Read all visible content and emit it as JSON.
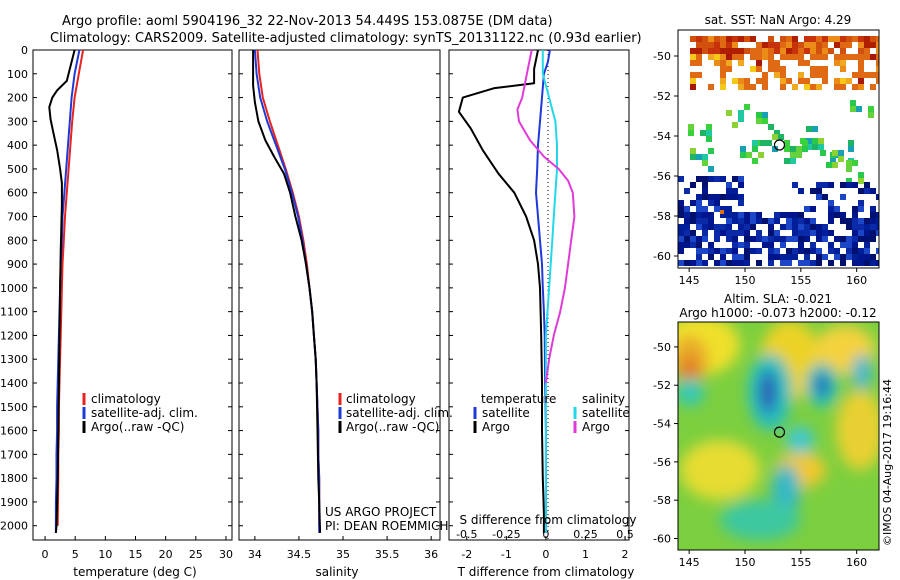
{
  "header": {
    "line1": "Argo profile: aoml 5904196_32 22-Nov-2013 54.449S 153.0875E (DM data)",
    "line2": "Climatology: CARS2009. Satellite-adjusted climatology: synTS_20131122.nc (0.93d earlier)"
  },
  "colors": {
    "climatology": "#e8221e",
    "satellite": "#1f39d8",
    "argo": "#000000",
    "satellite_salinity": "#22d8e8",
    "argo_salinity": "#e03ad8"
  },
  "chart_data": [
    {
      "type": "line",
      "id": "temperature",
      "xlabel": "temperature (deg C)",
      "ylabel": "",
      "xlim": [
        -2,
        31
      ],
      "ylim": [
        2060,
        0
      ],
      "xticks": [
        "0",
        "5",
        "10",
        "15",
        "20",
        "25",
        "30"
      ],
      "yticks": [
        "0",
        "100",
        "200",
        "300",
        "400",
        "500",
        "600",
        "700",
        "800",
        "900",
        "1000",
        "1100",
        "1200",
        "1300",
        "1400",
        "1500",
        "1600",
        "1700",
        "1800",
        "1900",
        "2000"
      ],
      "legend": [
        "climatology",
        "satellite-adj. clim.",
        "Argo(..raw -QC)"
      ],
      "series": [
        {
          "name": "climatology",
          "color": "#e8221e",
          "x": [
            6.3,
            5.6,
            4.9,
            4.5,
            4.2,
            3.9,
            3.6,
            3.3,
            3.1,
            2.9,
            2.8,
            2.7,
            2.6,
            2.5,
            2.4,
            2.3,
            2.3,
            2.2,
            2.2,
            2.1
          ],
          "y": [
            0,
            100,
            200,
            300,
            400,
            500,
            600,
            700,
            800,
            900,
            1000,
            1100,
            1200,
            1300,
            1400,
            1500,
            1600,
            1700,
            1800,
            2000
          ]
        },
        {
          "name": "satellite-adj. clim.",
          "color": "#1f39d8",
          "x": [
            5.7,
            4.9,
            4.4,
            4.1,
            3.8,
            3.5,
            3.2,
            2.9,
            2.8,
            2.6,
            2.5,
            2.4,
            2.3,
            2.2,
            2.1,
            2.0,
            2.0,
            1.9,
            1.9,
            1.8,
            1.8
          ],
          "y": [
            0,
            100,
            200,
            300,
            400,
            500,
            600,
            700,
            800,
            900,
            1000,
            1100,
            1200,
            1300,
            1400,
            1500,
            1600,
            1700,
            1800,
            1900,
            2030
          ]
        },
        {
          "name": "Argo(..raw -QC)",
          "color": "#000000",
          "x": [
            4.9,
            4.3,
            3.6,
            2.0,
            1.2,
            0.7,
            0.9,
            1.4,
            2.0,
            2.5,
            2.8,
            2.8,
            2.7,
            2.6,
            2.5,
            2.4,
            2.3,
            2.2,
            2.1,
            2.0,
            1.9,
            1.8
          ],
          "y": [
            0,
            60,
            130,
            170,
            200,
            240,
            290,
            350,
            420,
            500,
            560,
            650,
            750,
            850,
            1000,
            1200,
            1400,
            1600,
            1800,
            1900,
            2000,
            2030
          ]
        }
      ]
    },
    {
      "type": "line",
      "id": "salinity",
      "xlabel": "salinity",
      "ylabel": "",
      "xlim": [
        33.82,
        36.1
      ],
      "ylim": [
        2060,
        0
      ],
      "xticks": [
        "34",
        "34.5",
        "35",
        "35.5",
        "36"
      ],
      "legend": [
        "climatology",
        "satellite-adj. clim.",
        "Argo(..raw -QC)"
      ],
      "annotations": [
        "US ARGO PROJECT",
        "PI: DEAN ROEMMICH"
      ],
      "series": [
        {
          "name": "climatology",
          "color": "#e8221e",
          "x": [
            34.03,
            34.05,
            34.09,
            34.17,
            34.26,
            34.35,
            34.43,
            34.5,
            34.55,
            34.59,
            34.62,
            34.65,
            34.67,
            34.69,
            34.7,
            34.71,
            34.72,
            34.72,
            34.73,
            34.73
          ],
          "y": [
            0,
            100,
            200,
            300,
            400,
            500,
            600,
            700,
            800,
            900,
            1000,
            1100,
            1200,
            1300,
            1400,
            1500,
            1600,
            1700,
            1800,
            2000
          ]
        },
        {
          "name": "satellite-adj. clim.",
          "color": "#1f39d8",
          "x": [
            34.0,
            34.02,
            34.06,
            34.14,
            34.24,
            34.34,
            34.42,
            34.49,
            34.54,
            34.58,
            34.62,
            34.65,
            34.67,
            34.69,
            34.7,
            34.71,
            34.72,
            34.72,
            34.73,
            34.73
          ],
          "y": [
            0,
            100,
            200,
            300,
            400,
            500,
            600,
            700,
            800,
            900,
            1000,
            1100,
            1200,
            1300,
            1400,
            1500,
            1600,
            1700,
            1800,
            2030
          ]
        },
        {
          "name": "Argo(..raw -QC)",
          "color": "#000000",
          "x": [
            33.98,
            33.98,
            34.0,
            34.04,
            34.12,
            34.22,
            34.33,
            34.4,
            34.46,
            34.53,
            34.58,
            34.62,
            34.65,
            34.67,
            34.69,
            34.7,
            34.71,
            34.72,
            34.73,
            34.74
          ],
          "y": [
            0,
            150,
            220,
            300,
            380,
            450,
            520,
            600,
            700,
            800,
            900,
            1000,
            1100,
            1200,
            1300,
            1400,
            1600,
            1800,
            1900,
            2030
          ]
        }
      ]
    },
    {
      "type": "line",
      "id": "difference",
      "xlabel": "T difference from climatology",
      "xlabel_top": "S difference from climatology",
      "xlim": [
        -2.45,
        2.1
      ],
      "ylim": [
        2060,
        0
      ],
      "xticks_T": [
        "-2",
        "-1",
        "0",
        "1",
        "2"
      ],
      "xticks_S": [
        "-0.5",
        "-0.25",
        "0",
        "0.25",
        "0.5"
      ],
      "legend": {
        "temperature": {
          "title": "temperature",
          "items": [
            "satellite",
            "Argo"
          ]
        },
        "salinity": {
          "title": "salinity",
          "items": [
            "satellite",
            "Argo"
          ]
        }
      },
      "series": [
        {
          "name": "temperature satellite",
          "color": "#1f39d8",
          "x": [
            0.1,
            0.05,
            -0.05,
            -0.1,
            -0.15,
            -0.2,
            -0.22,
            -0.25,
            -0.2,
            -0.15,
            -0.1,
            -0.08,
            -0.05,
            -0.03,
            -0.02,
            0.0,
            0.0,
            0.0,
            0.0
          ],
          "y": [
            0,
            50,
            100,
            200,
            300,
            400,
            500,
            600,
            700,
            800,
            900,
            1000,
            1100,
            1200,
            1400,
            1600,
            1800,
            1900,
            2030
          ]
        },
        {
          "name": "temperature Argo",
          "color": "#000000",
          "x": [
            -0.2,
            -0.3,
            -0.3,
            -1.3,
            -2.1,
            -2.2,
            -1.9,
            -1.6,
            -1.2,
            -0.8,
            -0.5,
            -0.3,
            -0.2,
            -0.15,
            -0.12,
            -0.1,
            -0.1,
            -0.08,
            -0.05,
            -0.05
          ],
          "y": [
            0,
            80,
            140,
            160,
            200,
            260,
            330,
            420,
            520,
            600,
            700,
            800,
            900,
            1000,
            1200,
            1400,
            1600,
            1800,
            1950,
            2030
          ]
        },
        {
          "name": "salinity satellite",
          "color": "#22d8e8",
          "x": [
            -0.02,
            -0.02,
            0.02,
            0.06,
            0.07,
            0.07,
            0.06,
            0.05,
            0.04,
            0.03,
            0.02,
            0.01,
            0.0,
            0.0,
            0.0,
            0.0,
            0.0,
            0.0
          ],
          "y": [
            0,
            100,
            200,
            300,
            400,
            500,
            600,
            700,
            800,
            900,
            1000,
            1100,
            1200,
            1400,
            1600,
            1800,
            1900,
            2030
          ]
        },
        {
          "name": "salinity Argo",
          "color": "#e03ad8",
          "x": [
            -0.09,
            -0.12,
            -0.15,
            -0.18,
            -0.17,
            -0.1,
            -0.01,
            0.08,
            0.14,
            0.17,
            0.18,
            0.16,
            0.14,
            0.12,
            0.09,
            0.05,
            0.02,
            0.0
          ],
          "y": [
            0,
            100,
            200,
            250,
            300,
            380,
            450,
            500,
            550,
            600,
            700,
            800,
            900,
            1000,
            1100,
            1200,
            1300,
            1400
          ]
        }
      ]
    },
    {
      "type": "heatmap",
      "id": "sst-map",
      "title": "sat. SST: NaN Argo: 4.29",
      "xticks": [
        "145",
        "150",
        "155",
        "160"
      ],
      "yticks": [
        "-50",
        "-52",
        "-54",
        "-56",
        "-58",
        "-60"
      ],
      "xlim": [
        144,
        162
      ],
      "ylim": [
        -60.6,
        -48.7
      ],
      "marker": {
        "lon": 153.0875,
        "lat": -54.449
      }
    },
    {
      "type": "heatmap",
      "id": "sla-map",
      "title": "Altim. SLA: -0.021",
      "subtitle": "Argo h1000: -0.073 h2000: -0.12",
      "xticks": [
        "145",
        "150",
        "155",
        "160"
      ],
      "yticks": [
        "-50",
        "-52",
        "-54",
        "-56",
        "-58",
        "-60"
      ],
      "xlim": [
        144,
        162
      ],
      "ylim": [
        -60.6,
        -48.7
      ],
      "marker": {
        "lon": 153.0875,
        "lat": -54.449
      }
    }
  ],
  "credit": "©IMOS 04-Aug-2017 19:16:44"
}
